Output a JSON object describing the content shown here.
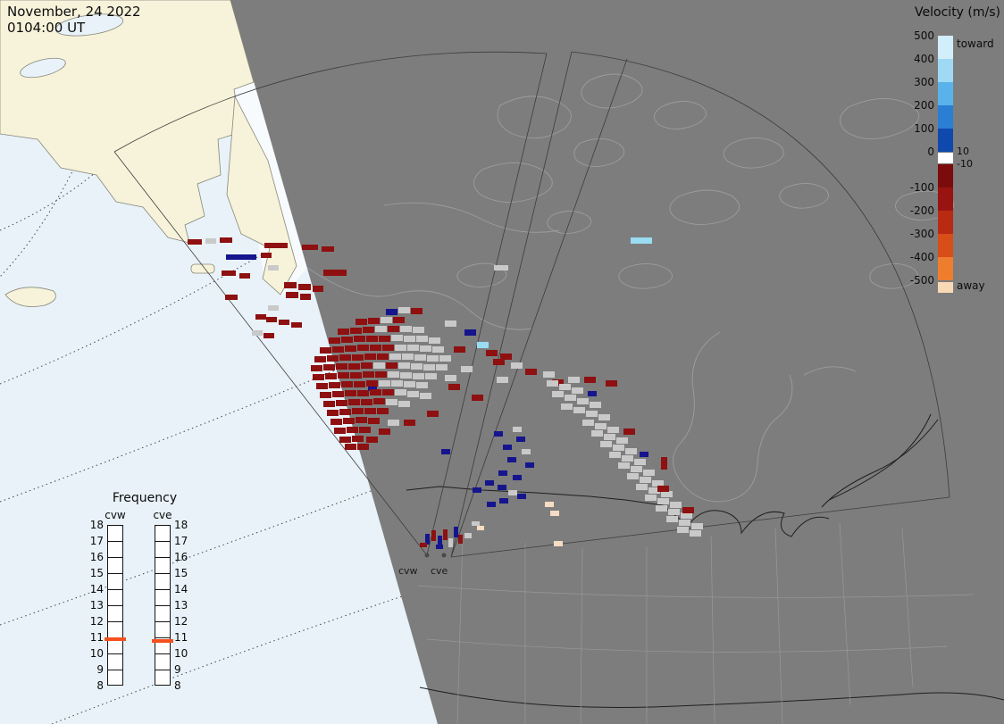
{
  "header": {
    "date_line": "November, 24 2022",
    "time_line": "0104:00 UT"
  },
  "colorbar": {
    "title": "Velocity (m/s)",
    "toward_label": "toward",
    "away_label": "away",
    "zero_upper": "10",
    "zero_lower": "-10",
    "pos_ticks": [
      "500",
      "400",
      "300",
      "200",
      "100",
      "0"
    ],
    "neg_ticks": [
      "-100",
      "-200",
      "-300",
      "-400",
      "-500"
    ],
    "toward_colors": [
      "#d2eefb",
      "#9fd9f5",
      "#59b2e9",
      "#2a7fd4",
      "#1049ae"
    ],
    "zero_color": "#ffffff",
    "away_colors": [
      "#7c0c0c",
      "#991310",
      "#b92a13",
      "#d84e18",
      "#ef7d2e"
    ],
    "away_swatch": "#f9d9b5"
  },
  "frequency": {
    "title": "Frequency",
    "ticks": [
      "18",
      "17",
      "16",
      "15",
      "14",
      "13",
      "12",
      "11",
      "10",
      "9",
      "8"
    ],
    "scale_max": 18,
    "scale_min": 8,
    "marker_color": "#f4501e",
    "columns": [
      {
        "label": "cvw",
        "marker_value": 10.9
      },
      {
        "label": "cve",
        "marker_value": 10.8
      }
    ]
  },
  "map": {
    "site_labels": [
      {
        "text": "cvw"
      },
      {
        "text": "cve"
      }
    ],
    "cell_colors": {
      "r": "#8e1010",
      "g": "#c9c9c9",
      "b": "#15158e",
      "c": "#9adcf2",
      "p": "#f5dcc3"
    },
    "cells": [
      [
        210,
        268,
        "r",
        16,
        6
      ],
      [
        230,
        267,
        "g",
        12,
        6
      ],
      [
        246,
        266,
        "r",
        14,
        6
      ],
      [
        253,
        285,
        "b",
        34,
        6
      ],
      [
        292,
        283,
        "r",
        12,
        6
      ],
      [
        296,
        272,
        "r",
        26,
        6
      ],
      [
        338,
        274,
        "r",
        18,
        6
      ],
      [
        360,
        276,
        "r",
        14,
        6
      ],
      [
        300,
        297,
        "g",
        12,
        6
      ],
      [
        248,
        303,
        "r",
        16,
        6
      ],
      [
        268,
        306,
        "r",
        12,
        6
      ],
      [
        362,
        302,
        "r",
        26,
        7
      ],
      [
        318,
        316,
        "r",
        14,
        7
      ],
      [
        334,
        318,
        "r",
        14,
        7
      ],
      [
        350,
        320,
        "r",
        12,
        7
      ],
      [
        320,
        327,
        "r",
        14,
        7
      ],
      [
        336,
        329,
        "r",
        12,
        7
      ],
      [
        252,
        330,
        "r",
        14,
        6
      ],
      [
        300,
        342,
        "g",
        12,
        6
      ],
      [
        286,
        352,
        "r",
        12,
        6
      ],
      [
        298,
        355,
        "r",
        12,
        6
      ],
      [
        312,
        358,
        "r",
        12,
        6
      ],
      [
        326,
        361,
        "r",
        12,
        6
      ],
      [
        282,
        370,
        "g",
        12,
        6
      ],
      [
        295,
        373,
        "r",
        12,
        6
      ],
      [
        432,
        346,
        "b"
      ],
      [
        446,
        344,
        "g"
      ],
      [
        460,
        345,
        "r"
      ],
      [
        398,
        357,
        "r"
      ],
      [
        412,
        356,
        "r"
      ],
      [
        426,
        355,
        "g"
      ],
      [
        440,
        355,
        "r"
      ],
      [
        498,
        359,
        "g"
      ],
      [
        378,
        368,
        "r"
      ],
      [
        392,
        367,
        "r"
      ],
      [
        406,
        366,
        "r"
      ],
      [
        420,
        365,
        "g"
      ],
      [
        434,
        365,
        "r"
      ],
      [
        448,
        365,
        "g"
      ],
      [
        462,
        366,
        "g"
      ],
      [
        520,
        369,
        "b"
      ],
      [
        368,
        378,
        "r"
      ],
      [
        382,
        377,
        "r"
      ],
      [
        396,
        376,
        "r"
      ],
      [
        410,
        376,
        "r"
      ],
      [
        424,
        376,
        "r"
      ],
      [
        438,
        375,
        "g"
      ],
      [
        452,
        376,
        "g"
      ],
      [
        466,
        376,
        "g"
      ],
      [
        480,
        378,
        "g"
      ],
      [
        534,
        383,
        "c"
      ],
      [
        358,
        389,
        "r"
      ],
      [
        372,
        388,
        "r"
      ],
      [
        386,
        387,
        "r"
      ],
      [
        400,
        386,
        "r"
      ],
      [
        414,
        386,
        "r"
      ],
      [
        428,
        386,
        "r"
      ],
      [
        442,
        386,
        "g"
      ],
      [
        456,
        386,
        "g"
      ],
      [
        470,
        387,
        "g"
      ],
      [
        484,
        388,
        "g"
      ],
      [
        508,
        388,
        "r"
      ],
      [
        544,
        392,
        "r"
      ],
      [
        560,
        396,
        "r"
      ],
      [
        352,
        399,
        "r"
      ],
      [
        366,
        398,
        "r"
      ],
      [
        380,
        397,
        "r"
      ],
      [
        394,
        397,
        "r"
      ],
      [
        408,
        396,
        "r"
      ],
      [
        422,
        396,
        "r"
      ],
      [
        436,
        396,
        "g"
      ],
      [
        450,
        396,
        "g"
      ],
      [
        464,
        397,
        "g"
      ],
      [
        478,
        398,
        "g"
      ],
      [
        492,
        398,
        "g"
      ],
      [
        552,
        402,
        "r"
      ],
      [
        572,
        406,
        "g"
      ],
      [
        348,
        409,
        "r"
      ],
      [
        362,
        408,
        "r"
      ],
      [
        376,
        407,
        "r"
      ],
      [
        390,
        407,
        "r"
      ],
      [
        404,
        406,
        "r"
      ],
      [
        418,
        406,
        "g"
      ],
      [
        432,
        406,
        "r"
      ],
      [
        446,
        406,
        "g"
      ],
      [
        460,
        407,
        "g"
      ],
      [
        474,
        408,
        "g"
      ],
      [
        488,
        408,
        "g"
      ],
      [
        516,
        410,
        "g"
      ],
      [
        588,
        413,
        "r"
      ],
      [
        608,
        416,
        "g"
      ],
      [
        350,
        419,
        "r"
      ],
      [
        364,
        418,
        "r"
      ],
      [
        378,
        417,
        "r"
      ],
      [
        392,
        417,
        "r"
      ],
      [
        406,
        416,
        "r"
      ],
      [
        420,
        416,
        "r"
      ],
      [
        434,
        416,
        "g"
      ],
      [
        448,
        417,
        "g"
      ],
      [
        462,
        418,
        "g"
      ],
      [
        476,
        418,
        "g"
      ],
      [
        498,
        420,
        "g"
      ],
      [
        556,
        422,
        "g"
      ],
      [
        618,
        425,
        "r"
      ],
      [
        636,
        422,
        "g"
      ],
      [
        354,
        429,
        "r"
      ],
      [
        368,
        428,
        "r"
      ],
      [
        382,
        427,
        "r"
      ],
      [
        396,
        427,
        "r"
      ],
      [
        410,
        426,
        "r"
      ],
      [
        424,
        426,
        "g"
      ],
      [
        438,
        426,
        "g"
      ],
      [
        452,
        427,
        "g"
      ],
      [
        466,
        428,
        "g"
      ],
      [
        502,
        430,
        "r"
      ],
      [
        412,
        433,
        "b",
        10,
        5
      ],
      [
        358,
        439,
        "r"
      ],
      [
        372,
        438,
        "r"
      ],
      [
        386,
        437,
        "r"
      ],
      [
        400,
        437,
        "r"
      ],
      [
        414,
        436,
        "r"
      ],
      [
        428,
        436,
        "r"
      ],
      [
        442,
        436,
        "g"
      ],
      [
        456,
        438,
        "g"
      ],
      [
        470,
        440,
        "g"
      ],
      [
        528,
        442,
        "r"
      ],
      [
        362,
        449,
        "r"
      ],
      [
        376,
        448,
        "r"
      ],
      [
        390,
        447,
        "r"
      ],
      [
        404,
        447,
        "r"
      ],
      [
        418,
        446,
        "r"
      ],
      [
        432,
        447,
        "g"
      ],
      [
        446,
        449,
        "g"
      ],
      [
        366,
        459,
        "r"
      ],
      [
        380,
        458,
        "r"
      ],
      [
        394,
        457,
        "r"
      ],
      [
        408,
        457,
        "r"
      ],
      [
        422,
        457,
        "r"
      ],
      [
        478,
        460,
        "r"
      ],
      [
        370,
        469,
        "r"
      ],
      [
        384,
        468,
        "r"
      ],
      [
        398,
        467,
        "r"
      ],
      [
        412,
        468,
        "r"
      ],
      [
        434,
        470,
        "g"
      ],
      [
        452,
        470,
        "r"
      ],
      [
        374,
        479,
        "r"
      ],
      [
        388,
        478,
        "r"
      ],
      [
        402,
        478,
        "r"
      ],
      [
        424,
        480,
        "r"
      ],
      [
        380,
        489,
        "r"
      ],
      [
        394,
        488,
        "r"
      ],
      [
        410,
        489,
        "r"
      ],
      [
        386,
        497,
        "r"
      ],
      [
        400,
        497,
        "r"
      ],
      [
        494,
        503,
        "b",
        10,
        6
      ],
      [
        553,
        483,
        "b",
        10,
        6
      ],
      [
        574,
        478,
        "g",
        10,
        6
      ],
      [
        578,
        489,
        "b",
        10,
        6
      ],
      [
        563,
        498,
        "b",
        10,
        6
      ],
      [
        584,
        503,
        "g",
        10,
        6
      ],
      [
        568,
        512,
        "b",
        10,
        6
      ],
      [
        588,
        518,
        "b",
        10,
        6
      ],
      [
        558,
        527,
        "b",
        10,
        6
      ],
      [
        574,
        532,
        "b",
        10,
        6
      ],
      [
        543,
        538,
        "b",
        10,
        6
      ],
      [
        557,
        543,
        "b",
        10,
        6
      ],
      [
        529,
        546,
        "b",
        10,
        6
      ],
      [
        569,
        549,
        "g",
        10,
        6
      ],
      [
        579,
        553,
        "b",
        10,
        6
      ],
      [
        559,
        558,
        "b",
        10,
        6
      ],
      [
        545,
        562,
        "b",
        10,
        6
      ],
      [
        612,
        426,
        "g"
      ],
      [
        626,
        430,
        "g"
      ],
      [
        640,
        434,
        "g"
      ],
      [
        654,
        422,
        "r"
      ],
      [
        678,
        426,
        "r"
      ],
      [
        618,
        438,
        "g"
      ],
      [
        632,
        442,
        "g"
      ],
      [
        646,
        446,
        "g"
      ],
      [
        660,
        450,
        "g"
      ],
      [
        658,
        438,
        "b",
        10,
        6
      ],
      [
        628,
        452,
        "g"
      ],
      [
        642,
        456,
        "g"
      ],
      [
        656,
        460,
        "g"
      ],
      [
        670,
        464,
        "g"
      ],
      [
        652,
        470,
        "g"
      ],
      [
        666,
        474,
        "g"
      ],
      [
        680,
        478,
        "g"
      ],
      [
        698,
        480,
        "r"
      ],
      [
        662,
        482,
        "g"
      ],
      [
        676,
        486,
        "g"
      ],
      [
        690,
        490,
        "g"
      ],
      [
        672,
        494,
        "g"
      ],
      [
        686,
        498,
        "g"
      ],
      [
        700,
        502,
        "g"
      ],
      [
        682,
        506,
        "g"
      ],
      [
        696,
        510,
        "g"
      ],
      [
        710,
        514,
        "g"
      ],
      [
        716,
        506,
        "b",
        10,
        6
      ],
      [
        692,
        518,
        "g"
      ],
      [
        706,
        522,
        "g"
      ],
      [
        720,
        526,
        "g"
      ],
      [
        702,
        530,
        "g"
      ],
      [
        716,
        534,
        "g"
      ],
      [
        730,
        538,
        "g"
      ],
      [
        712,
        542,
        "g"
      ],
      [
        726,
        546,
        "g"
      ],
      [
        740,
        550,
        "g"
      ],
      [
        736,
        544,
        "r"
      ],
      [
        722,
        554,
        "g"
      ],
      [
        736,
        558,
        "g"
      ],
      [
        750,
        562,
        "g"
      ],
      [
        734,
        566,
        "g"
      ],
      [
        748,
        570,
        "g"
      ],
      [
        762,
        574,
        "g"
      ],
      [
        764,
        568,
        "r"
      ],
      [
        746,
        578,
        "g"
      ],
      [
        760,
        582,
        "g"
      ],
      [
        774,
        586,
        "g"
      ],
      [
        758,
        590,
        "g"
      ],
      [
        772,
        594,
        "g"
      ],
      [
        740,
        512,
        "r",
        7,
        14
      ],
      [
        706,
        266,
        "c",
        24,
        7
      ],
      [
        553,
        297,
        "g",
        16,
        6
      ],
      [
        610,
        562,
        "p",
        10,
        6
      ],
      [
        616,
        572,
        "p",
        10,
        6
      ],
      [
        620,
        606,
        "p",
        10,
        6
      ],
      [
        476,
        598,
        "b",
        5,
        12
      ],
      [
        483,
        594,
        "r",
        5,
        12
      ],
      [
        490,
        600,
        "b",
        5,
        12
      ],
      [
        496,
        593,
        "r",
        5,
        12
      ],
      [
        502,
        603,
        "g",
        5,
        10
      ],
      [
        508,
        590,
        "b",
        5,
        12
      ],
      [
        513,
        599,
        "r",
        5,
        10
      ],
      [
        520,
        597,
        "g",
        8,
        6
      ],
      [
        470,
        608,
        "r",
        8,
        5
      ],
      [
        488,
        610,
        "b",
        8,
        5
      ],
      [
        528,
        584,
        "g",
        9,
        5
      ],
      [
        534,
        589,
        "p",
        8,
        5
      ]
    ]
  }
}
